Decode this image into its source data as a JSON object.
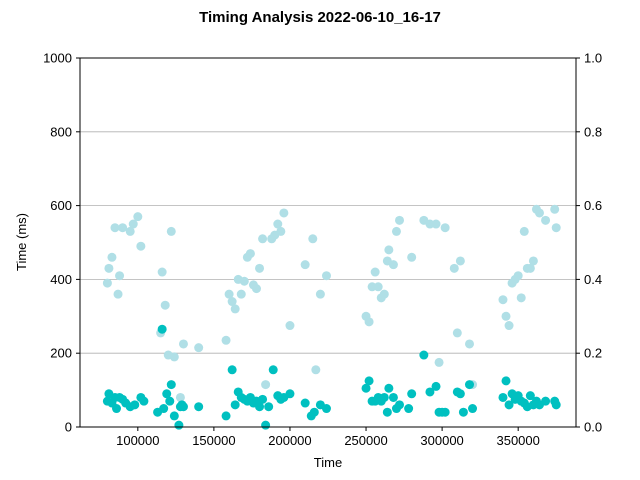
{
  "chart_data": {
    "type": "scatter",
    "title": "Timing Analysis 2022-06-10_16-17",
    "xlabel": "Time",
    "ylabel": "Time (ms)",
    "xlim": [
      62000,
      388000
    ],
    "ylim": [
      0,
      1000
    ],
    "y2lim": [
      0,
      1.0
    ],
    "xticks": [
      100000,
      150000,
      200000,
      250000,
      300000,
      350000
    ],
    "yticks": [
      0,
      200,
      400,
      600,
      800,
      1000
    ],
    "y2ticks": [
      0.0,
      0.2,
      0.4,
      0.6,
      0.8,
      1.0
    ],
    "xtick_labels": [
      "100000",
      "150000",
      "200000",
      "250000",
      "300000",
      "350000"
    ],
    "ytick_labels": [
      "0",
      "200",
      "400",
      "600",
      "800",
      "1000"
    ],
    "y2tick_labels": [
      "0.0",
      "0.2",
      "0.4",
      "0.6",
      "0.8",
      "1.0"
    ],
    "grid": "y-major",
    "series": [
      {
        "color": "#b0dfe6",
        "points": [
          [
            80000,
            390
          ],
          [
            81000,
            430
          ],
          [
            83000,
            460
          ],
          [
            85000,
            540
          ],
          [
            87000,
            360
          ],
          [
            88000,
            410
          ],
          [
            90000,
            540
          ],
          [
            95000,
            530
          ],
          [
            97000,
            550
          ],
          [
            100000,
            570
          ],
          [
            102000,
            490
          ],
          [
            115000,
            255
          ],
          [
            116000,
            420
          ],
          [
            118000,
            330
          ],
          [
            120000,
            195
          ],
          [
            122000,
            530
          ],
          [
            124000,
            190
          ],
          [
            128000,
            80
          ],
          [
            130000,
            225
          ],
          [
            140000,
            215
          ],
          [
            158000,
            235
          ],
          [
            160000,
            360
          ],
          [
            162000,
            340
          ],
          [
            164000,
            320
          ],
          [
            166000,
            400
          ],
          [
            168000,
            360
          ],
          [
            170000,
            395
          ],
          [
            172000,
            460
          ],
          [
            174000,
            470
          ],
          [
            176000,
            385
          ],
          [
            178000,
            375
          ],
          [
            180000,
            430
          ],
          [
            182000,
            510
          ],
          [
            184000,
            115
          ],
          [
            188000,
            510
          ],
          [
            190000,
            520
          ],
          [
            192000,
            550
          ],
          [
            194000,
            530
          ],
          [
            196000,
            580
          ],
          [
            200000,
            275
          ],
          [
            210000,
            440
          ],
          [
            215000,
            510
          ],
          [
            217000,
            155
          ],
          [
            220000,
            360
          ],
          [
            224000,
            410
          ],
          [
            250000,
            300
          ],
          [
            252000,
            285
          ],
          [
            254000,
            380
          ],
          [
            256000,
            420
          ],
          [
            258000,
            380
          ],
          [
            260000,
            350
          ],
          [
            262000,
            360
          ],
          [
            264000,
            450
          ],
          [
            265000,
            480
          ],
          [
            268000,
            440
          ],
          [
            270000,
            530
          ],
          [
            272000,
            560
          ],
          [
            280000,
            460
          ],
          [
            288000,
            560
          ],
          [
            292000,
            550
          ],
          [
            296000,
            550
          ],
          [
            298000,
            175
          ],
          [
            302000,
            540
          ],
          [
            308000,
            430
          ],
          [
            310000,
            255
          ],
          [
            312000,
            450
          ],
          [
            318000,
            225
          ],
          [
            320000,
            115
          ],
          [
            340000,
            345
          ],
          [
            342000,
            300
          ],
          [
            344000,
            275
          ],
          [
            346000,
            390
          ],
          [
            348000,
            400
          ],
          [
            350000,
            410
          ],
          [
            352000,
            350
          ],
          [
            354000,
            530
          ],
          [
            356000,
            430
          ],
          [
            358000,
            430
          ],
          [
            360000,
            450
          ],
          [
            362000,
            590
          ],
          [
            364000,
            580
          ],
          [
            368000,
            560
          ],
          [
            374000,
            590
          ],
          [
            375000,
            540
          ]
        ]
      },
      {
        "color": "#00c0c0",
        "points": [
          [
            80000,
            70
          ],
          [
            81000,
            90
          ],
          [
            83000,
            65
          ],
          [
            85000,
            80
          ],
          [
            86000,
            50
          ],
          [
            88000,
            80
          ],
          [
            90000,
            75
          ],
          [
            92000,
            65
          ],
          [
            95000,
            55
          ],
          [
            98000,
            60
          ],
          [
            102000,
            80
          ],
          [
            104000,
            70
          ],
          [
            113000,
            40
          ],
          [
            116000,
            265
          ],
          [
            117000,
            50
          ],
          [
            119000,
            90
          ],
          [
            121000,
            70
          ],
          [
            122000,
            115
          ],
          [
            124000,
            30
          ],
          [
            127000,
            5
          ],
          [
            128000,
            55
          ],
          [
            129000,
            60
          ],
          [
            130000,
            55
          ],
          [
            140000,
            55
          ],
          [
            158000,
            30
          ],
          [
            162000,
            155
          ],
          [
            164000,
            60
          ],
          [
            166000,
            95
          ],
          [
            168000,
            80
          ],
          [
            170000,
            75
          ],
          [
            172000,
            70
          ],
          [
            174000,
            80
          ],
          [
            176000,
            65
          ],
          [
            178000,
            70
          ],
          [
            180000,
            55
          ],
          [
            182000,
            75
          ],
          [
            184000,
            5
          ],
          [
            186000,
            55
          ],
          [
            189000,
            155
          ],
          [
            192000,
            85
          ],
          [
            194000,
            75
          ],
          [
            196000,
            80
          ],
          [
            200000,
            90
          ],
          [
            210000,
            65
          ],
          [
            214000,
            30
          ],
          [
            216000,
            40
          ],
          [
            220000,
            60
          ],
          [
            224000,
            50
          ],
          [
            250000,
            105
          ],
          [
            252000,
            125
          ],
          [
            254000,
            70
          ],
          [
            256000,
            70
          ],
          [
            258000,
            80
          ],
          [
            260000,
            70
          ],
          [
            262000,
            80
          ],
          [
            264000,
            40
          ],
          [
            265000,
            105
          ],
          [
            268000,
            80
          ],
          [
            270000,
            50
          ],
          [
            272000,
            60
          ],
          [
            278000,
            50
          ],
          [
            280000,
            90
          ],
          [
            288000,
            195
          ],
          [
            292000,
            95
          ],
          [
            296000,
            110
          ],
          [
            298000,
            40
          ],
          [
            300000,
            40
          ],
          [
            302000,
            40
          ],
          [
            310000,
            95
          ],
          [
            312000,
            90
          ],
          [
            314000,
            40
          ],
          [
            318000,
            115
          ],
          [
            320000,
            50
          ],
          [
            340000,
            80
          ],
          [
            342000,
            125
          ],
          [
            344000,
            60
          ],
          [
            346000,
            90
          ],
          [
            348000,
            75
          ],
          [
            350000,
            85
          ],
          [
            352000,
            70
          ],
          [
            354000,
            65
          ],
          [
            356000,
            55
          ],
          [
            358000,
            85
          ],
          [
            360000,
            60
          ],
          [
            362000,
            70
          ],
          [
            364000,
            60
          ],
          [
            368000,
            70
          ],
          [
            374000,
            70
          ],
          [
            375000,
            60
          ]
        ]
      }
    ]
  }
}
